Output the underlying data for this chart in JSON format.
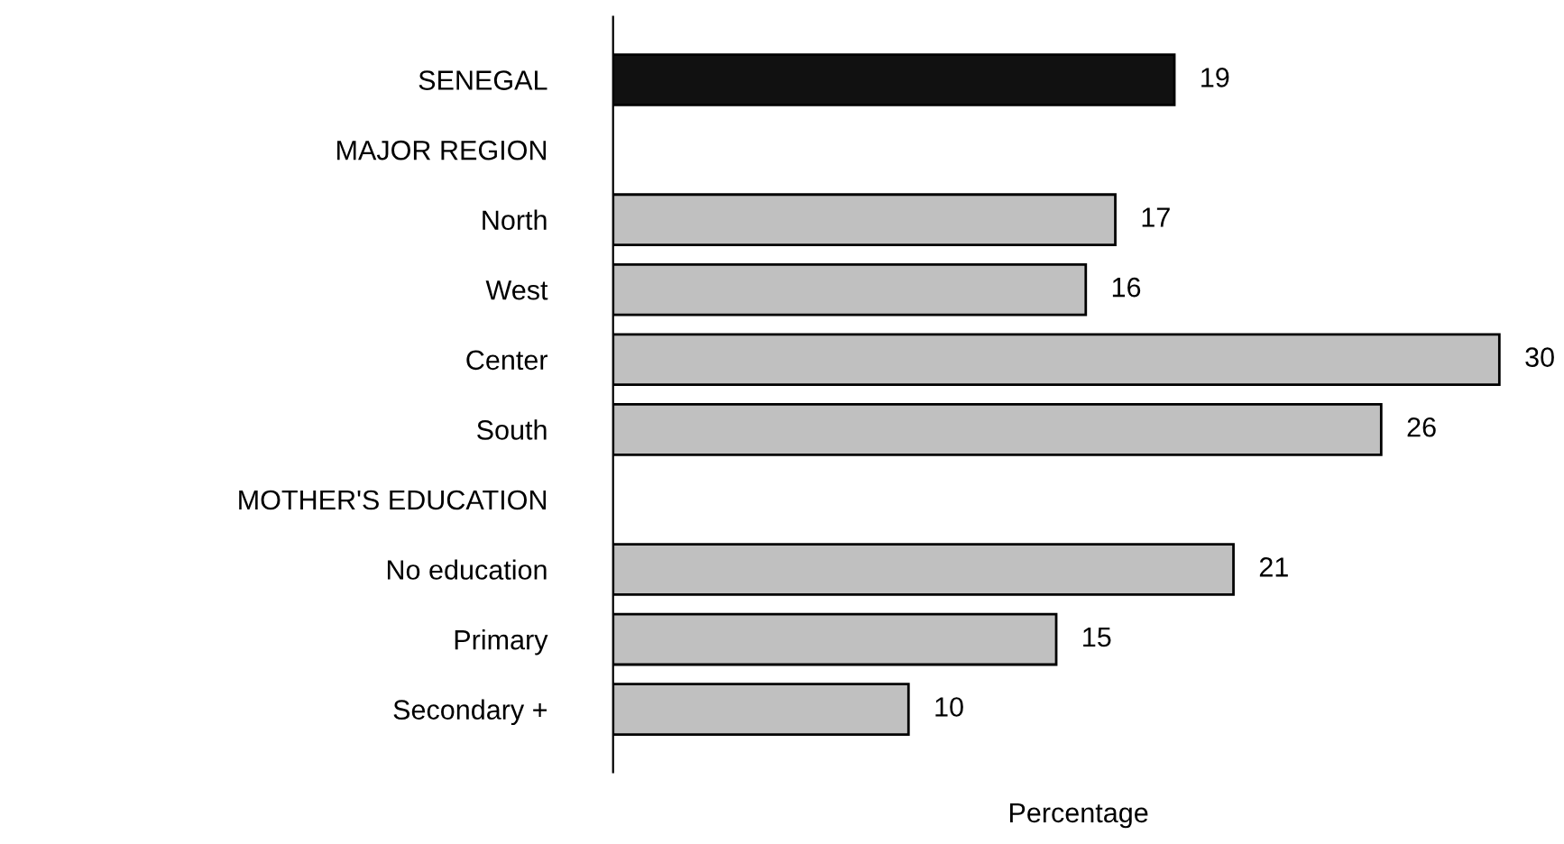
{
  "chart_data": {
    "type": "bar",
    "orientation": "horizontal",
    "xlabel": "Percentage",
    "categories": [
      "SENEGAL",
      "MAJOR REGION",
      "North",
      "West",
      "Center",
      "South",
      "MOTHER'S EDUCATION",
      "No education",
      "Primary",
      "Secondary +"
    ],
    "values": [
      19,
      null,
      17,
      16,
      30,
      26,
      null,
      21,
      15,
      10
    ],
    "colors": [
      "#111111",
      null,
      "#c0c0c0",
      "#c0c0c0",
      "#c0c0c0",
      "#c0c0c0",
      null,
      "#c0c0c0",
      "#c0c0c0",
      "#c0c0c0"
    ],
    "data_labels": true,
    "tick_labels": "y",
    "grid": false
  }
}
